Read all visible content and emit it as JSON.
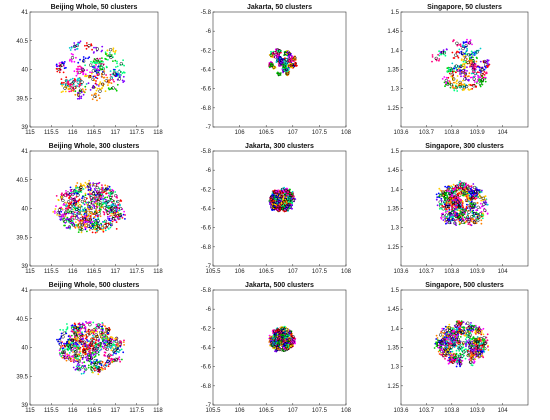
{
  "chart_data": [
    {
      "type": "scatter",
      "title": "Beijing Whole, 50 clusters",
      "city": "beijing",
      "clusters": 50,
      "xlim": [
        115,
        118
      ],
      "ylim": [
        39,
        41
      ],
      "xticks": [
        115,
        115.5,
        116,
        116.5,
        117,
        117.5,
        118
      ],
      "yticks": [
        39,
        39.5,
        40,
        40.5,
        41
      ],
      "xtick_labels": [
        "115",
        "115.5",
        "116",
        "116.5",
        "117",
        "117.5",
        "118"
      ],
      "ytick_labels": [
        "39",
        "39.5",
        "40",
        "40.5",
        "41"
      ],
      "colors": [
        "#ff0000",
        "#00cc00",
        "#0000ff",
        "#ff00ff",
        "#00cccc",
        "#ffcc00",
        "#8000ff",
        "#ff8000",
        "#00ff80",
        "#ff0080"
      ]
    },
    {
      "type": "scatter",
      "title": "Jakarta, 50 clusters",
      "city": "jakarta",
      "clusters": 50,
      "xlim": [
        105.5,
        108
      ],
      "ylim": [
        -7,
        -5.8
      ],
      "xticks": [
        106,
        106.5,
        107,
        107.5,
        108
      ],
      "yticks": [
        -7,
        -6.8,
        -6.6,
        -6.4,
        -6.2,
        -6,
        -5.8
      ],
      "xtick_labels": [
        "106",
        "106.5",
        "107",
        "107.5",
        "108"
      ],
      "ytick_labels": [
        "-7",
        "-6.8",
        "-6.6",
        "-6.4",
        "-6.2",
        "-6",
        "-5.8"
      ],
      "colors": [
        "#ff0000",
        "#00cc00",
        "#0000ff",
        "#ff00ff",
        "#00cccc",
        "#ffcc00",
        "#8000ff",
        "#ff8000",
        "#00ff80",
        "#ff0080"
      ]
    },
    {
      "type": "scatter",
      "title": "Singapore, 50 clusters",
      "city": "singapore",
      "clusters": 50,
      "xlim": [
        103.6,
        104.1
      ],
      "ylim": [
        1.2,
        1.5
      ],
      "xticks": [
        103.6,
        103.7,
        103.8,
        103.9,
        104
      ],
      "yticks": [
        1.25,
        1.3,
        1.35,
        1.4,
        1.45,
        1.5
      ],
      "xtick_labels": [
        "103.6",
        "103.7",
        "103.8",
        "103.9",
        "104"
      ],
      "ytick_labels": [
        "1.25",
        "1.3",
        "1.35",
        "1.4",
        "1.45",
        "1.5"
      ],
      "colors": [
        "#ff0000",
        "#00cc00",
        "#0000ff",
        "#ff00ff",
        "#00cccc",
        "#ffcc00",
        "#8000ff",
        "#ff8000",
        "#00ff80",
        "#ff0080"
      ]
    },
    {
      "type": "scatter",
      "title": "Beijing Whole, 300 clusters",
      "city": "beijing",
      "clusters": 300,
      "xlim": [
        115,
        118
      ],
      "ylim": [
        39,
        41
      ],
      "xticks": [
        115,
        115.5,
        116,
        116.5,
        117,
        117.5,
        118
      ],
      "yticks": [
        39,
        39.5,
        40,
        40.5,
        41
      ],
      "xtick_labels": [
        "115",
        "115.5",
        "116",
        "116.5",
        "117",
        "117.5",
        "118"
      ],
      "ytick_labels": [
        "39",
        "39.5",
        "40",
        "40.5",
        "41"
      ],
      "colors": [
        "#ff0000",
        "#00cc00",
        "#0000ff",
        "#ff00ff",
        "#00cccc",
        "#ffcc00",
        "#8000ff",
        "#ff8000",
        "#00ff80",
        "#ff0080"
      ]
    },
    {
      "type": "scatter",
      "title": "Jakarta, 300 clusters",
      "city": "jakarta",
      "clusters": 300,
      "xlim": [
        105.5,
        108
      ],
      "ylim": [
        -7,
        -5.8
      ],
      "xticks": [
        105.5,
        106,
        106.5,
        107,
        107.5,
        108
      ],
      "yticks": [
        -7,
        -6.8,
        -6.6,
        -6.4,
        -6.2,
        -6,
        -5.8
      ],
      "xtick_labels": [
        "105.5",
        "106",
        "106.5",
        "107",
        "107.5",
        "108"
      ],
      "ytick_labels": [
        "-7",
        "-6.8",
        "-6.6",
        "-6.4",
        "-6.2",
        "-6",
        "-5.8"
      ],
      "colors": [
        "#ff0000",
        "#00cc00",
        "#0000ff",
        "#ff00ff",
        "#00cccc",
        "#ffcc00",
        "#8000ff",
        "#ff8000",
        "#00ff80",
        "#ff0080"
      ]
    },
    {
      "type": "scatter",
      "title": "Singapore, 300 clusters",
      "city": "singapore",
      "clusters": 300,
      "xlim": [
        103.6,
        104.1
      ],
      "ylim": [
        1.2,
        1.5
      ],
      "xticks": [
        103.6,
        103.7,
        103.8,
        103.9,
        104
      ],
      "yticks": [
        1.25,
        1.3,
        1.35,
        1.4,
        1.45,
        1.5
      ],
      "xtick_labels": [
        "103.6",
        "103.7",
        "103.8",
        "103.9",
        "104"
      ],
      "ytick_labels": [
        "1.25",
        "1.3",
        "1.35",
        "1.4",
        "1.45",
        "1.5"
      ],
      "colors": [
        "#ff0000",
        "#00cc00",
        "#0000ff",
        "#ff00ff",
        "#00cccc",
        "#ffcc00",
        "#8000ff",
        "#ff8000",
        "#00ff80",
        "#ff0080"
      ]
    },
    {
      "type": "scatter",
      "title": "Beijing Whole, 500 clusters",
      "city": "beijing",
      "clusters": 500,
      "xlim": [
        115,
        118
      ],
      "ylim": [
        39,
        41
      ],
      "xticks": [
        115,
        115.5,
        116,
        116.5,
        117,
        117.5,
        118
      ],
      "yticks": [
        39,
        39.5,
        40,
        40.5,
        41
      ],
      "xtick_labels": [
        "115",
        "115.5",
        "116",
        "116.5",
        "117",
        "117.5",
        "118"
      ],
      "ytick_labels": [
        "39",
        "39.5",
        "40",
        "40.5",
        "41"
      ],
      "colors": [
        "#ff0000",
        "#00cc00",
        "#0000ff",
        "#ff00ff",
        "#00cccc",
        "#ffcc00",
        "#8000ff",
        "#ff8000",
        "#00ff80",
        "#ff0080"
      ]
    },
    {
      "type": "scatter",
      "title": "Jakarta, 500 clusters",
      "city": "jakarta",
      "clusters": 500,
      "xlim": [
        105.5,
        108
      ],
      "ylim": [
        -7,
        -5.8
      ],
      "xticks": [
        105.5,
        106,
        106.5,
        107,
        107.5,
        108
      ],
      "yticks": [
        -7,
        -6.8,
        -6.6,
        -6.4,
        -6.2,
        -6,
        -5.8
      ],
      "xtick_labels": [
        "105.5",
        "106",
        "106.5",
        "107",
        "107.5",
        "108"
      ],
      "ytick_labels": [
        "-7",
        "-6.8",
        "-6.6",
        "-6.4",
        "-6.2",
        "-6",
        "-5.8"
      ],
      "colors": [
        "#ff0000",
        "#00cc00",
        "#0000ff",
        "#ff00ff",
        "#00cccc",
        "#ffcc00",
        "#8000ff",
        "#ff8000",
        "#00ff80",
        "#ff0080"
      ]
    },
    {
      "type": "scatter",
      "title": "Singapore, 500 clusters",
      "city": "singapore",
      "clusters": 500,
      "xlim": [
        103.6,
        104.1
      ],
      "ylim": [
        1.2,
        1.5
      ],
      "xticks": [
        103.6,
        103.7,
        103.8,
        103.9,
        104
      ],
      "yticks": [
        1.25,
        1.3,
        1.35,
        1.4,
        1.45,
        1.5
      ],
      "xtick_labels": [
        "103.6",
        "103.7",
        "103.8",
        "103.9",
        "104"
      ],
      "ytick_labels": [
        "1.25",
        "1.3",
        "1.35",
        "1.4",
        "1.45",
        "1.5"
      ],
      "colors": [
        "#ff0000",
        "#00cc00",
        "#0000ff",
        "#ff00ff",
        "#00cccc",
        "#ffcc00",
        "#8000ff",
        "#ff8000",
        "#00ff80",
        "#ff0080"
      ]
    }
  ]
}
